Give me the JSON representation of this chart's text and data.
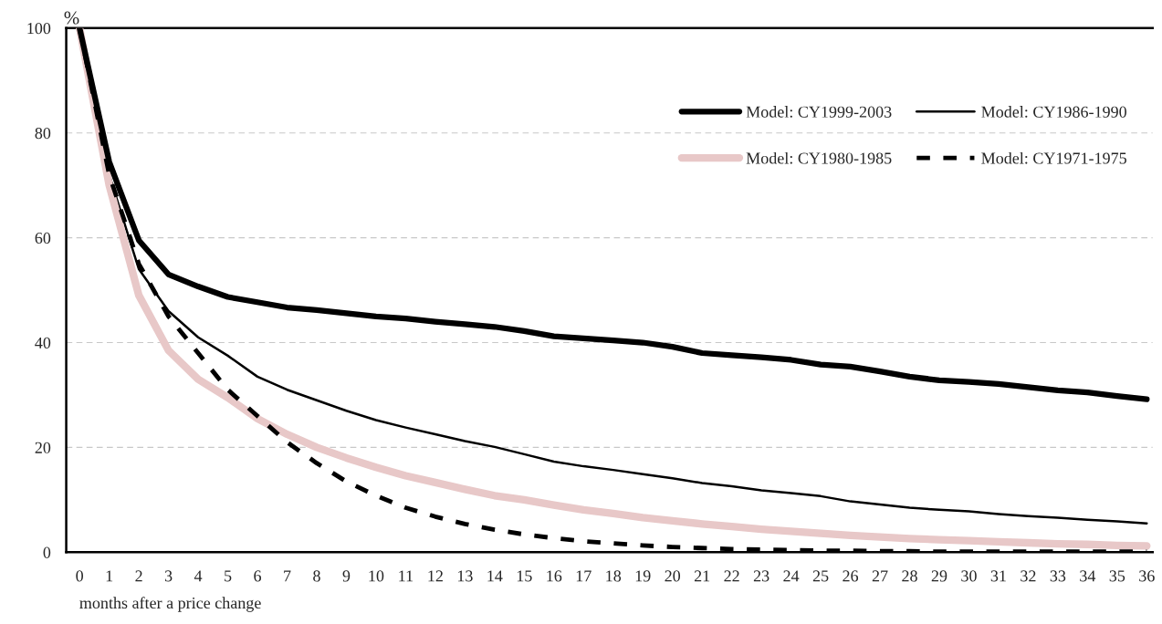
{
  "chart_data": {
    "type": "line",
    "ylabel": "%",
    "xlabel": "months after a price change",
    "categories": [
      "0",
      "1",
      "2",
      "3",
      "4",
      "5",
      "6",
      "7",
      "8",
      "9",
      "10",
      "11",
      "12",
      "13",
      "14",
      "15",
      "16",
      "17",
      "18",
      "19",
      "20",
      "21",
      "22",
      "23",
      "24",
      "25",
      "26",
      "27",
      "28",
      "29",
      "30",
      "31",
      "32",
      "33",
      "34",
      "35",
      "36"
    ],
    "ylim": [
      0,
      100
    ],
    "yticks": [
      0,
      20,
      40,
      60,
      80,
      100
    ],
    "grid": "y",
    "legend": "top right",
    "series": [
      {
        "name": "Model: CY1999-2003",
        "color": "#000000",
        "line_style": "solid",
        "values": [
          100,
          74.5,
          59.5,
          53,
          50.7,
          48.7,
          47.7,
          46.7,
          46.2,
          45.6,
          45,
          44.6,
          44,
          43.5,
          43,
          42.2,
          41.2,
          40.8,
          40.4,
          40,
          39.2,
          38,
          37.6,
          37.2,
          36.7,
          35.8,
          35.4,
          34.5,
          33.5,
          32.8,
          32.5,
          32.1,
          31.5,
          30.9,
          30.5,
          29.8,
          29.2
        ]
      },
      {
        "name": "Model: CY1986-1990",
        "color": "#000000",
        "line_style": "solid",
        "values": [
          100,
          72,
          54,
          46,
          41,
          37.5,
          33.5,
          31,
          29,
          27,
          25.2,
          23.8,
          22.5,
          21.2,
          20.1,
          18.7,
          17.3,
          16.4,
          15.7,
          14.9,
          14.1,
          13.2,
          12.6,
          11.8,
          11.3,
          10.7,
          9.7,
          9.1,
          8.5,
          8.1,
          7.8,
          7.3,
          6.9,
          6.6,
          6.2,
          5.9,
          5.5
        ]
      },
      {
        "name": "Model: CY1980-1985",
        "color": "#e8c8c8",
        "line_style": "solid",
        "values": [
          100,
          70,
          49,
          38.5,
          33,
          29.5,
          25.5,
          22.5,
          20,
          18,
          16.2,
          14.6,
          13.3,
          12,
          10.8,
          10,
          9,
          8.1,
          7.4,
          6.6,
          6,
          5.4,
          4.9,
          4.4,
          4,
          3.6,
          3.2,
          2.9,
          2.6,
          2.4,
          2.2,
          2,
          1.8,
          1.6,
          1.5,
          1.3,
          1.2
        ]
      },
      {
        "name": "Model: CY1971-1975",
        "color": "#000000",
        "line_style": "dashed",
        "values": [
          100,
          72,
          55,
          45,
          38,
          31,
          26,
          21,
          17,
          13.5,
          10.8,
          8.5,
          6.8,
          5.4,
          4.3,
          3.4,
          2.7,
          2.1,
          1.7,
          1.3,
          1,
          0.8,
          0.6,
          0.5,
          0.4,
          0.3,
          0.3,
          0.2,
          0.2,
          0.1,
          0.1,
          0.1,
          0.1,
          0.1,
          0.1,
          0.1,
          0.1
        ]
      }
    ]
  }
}
